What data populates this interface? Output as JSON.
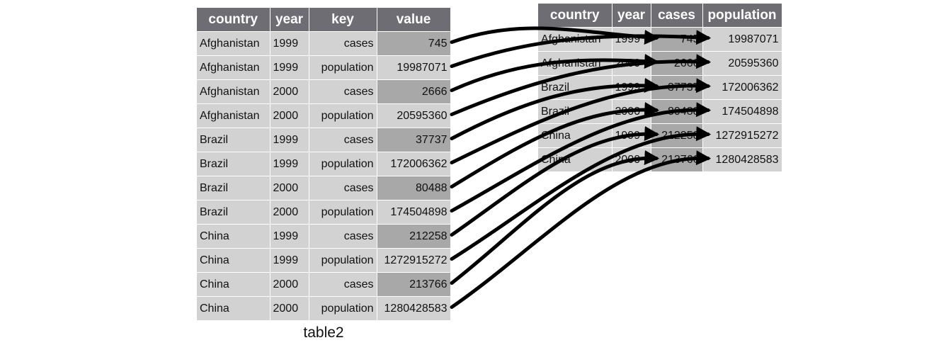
{
  "left_table": {
    "caption": "table2",
    "headers": [
      "country",
      "year",
      "key",
      "value"
    ],
    "rows": [
      [
        "Afghanistan",
        "1999",
        "cases",
        "745"
      ],
      [
        "Afghanistan",
        "1999",
        "population",
        "19987071"
      ],
      [
        "Afghanistan",
        "2000",
        "cases",
        "2666"
      ],
      [
        "Afghanistan",
        "2000",
        "population",
        "20595360"
      ],
      [
        "Brazil",
        "1999",
        "cases",
        "37737"
      ],
      [
        "Brazil",
        "1999",
        "population",
        "172006362"
      ],
      [
        "Brazil",
        "2000",
        "cases",
        "80488"
      ],
      [
        "Brazil",
        "2000",
        "population",
        "174504898"
      ],
      [
        "China",
        "1999",
        "cases",
        "212258"
      ],
      [
        "China",
        "1999",
        "population",
        "1272915272"
      ],
      [
        "China",
        "2000",
        "cases",
        "213766"
      ],
      [
        "China",
        "2000",
        "population",
        "1280428583"
      ]
    ]
  },
  "right_table": {
    "headers": [
      "country",
      "year",
      "cases",
      "population"
    ],
    "rows": [
      [
        "Afghanistan",
        "1999",
        "745",
        "19987071"
      ],
      [
        "Afghanistan",
        "2000",
        "2666",
        "20595360"
      ],
      [
        "Brazil",
        "1999",
        "37737",
        "172006362"
      ],
      [
        "Brazil",
        "2000",
        "80488",
        "174504898"
      ],
      [
        "China",
        "1999",
        "212258",
        "1272915272"
      ],
      [
        "China",
        "2000",
        "213766",
        "1280428583"
      ]
    ]
  },
  "colors": {
    "header_bg": "#6d6d73",
    "cell_bg": "#d2d2d2",
    "highlight_bg": "#a8a8a8",
    "arrow": "#000000"
  }
}
